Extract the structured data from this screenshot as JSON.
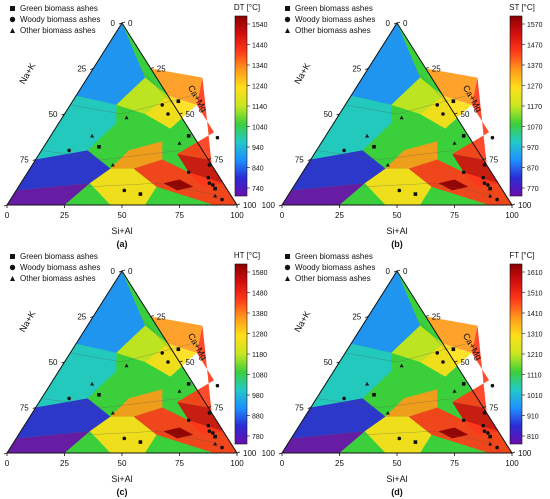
{
  "legend": {
    "green": "Green biomass ashes",
    "woody": "Woody biomass ashes",
    "other": "Other biomass ashes"
  },
  "colorscale": [
    "#6a0dad",
    "#2b2bd6",
    "#1e90ff",
    "#22c9c9",
    "#3ccf3c",
    "#c8e620",
    "#ffe01a",
    "#ff9a1a",
    "#ff3b1a",
    "#d40f0f",
    "#8b0000"
  ],
  "chart_data": [
    {
      "type": "ternary-contour",
      "panel_label": "(a)",
      "colorbar_title": "DT [°C]",
      "colorbar_ticks": [
        "1540",
        "1440",
        "1340",
        "1240",
        "1140",
        "1040",
        "940",
        "840",
        "740"
      ],
      "axis_left": "Na+K",
      "axis_right": "Ca+Mg",
      "axis_bottom": "Si+Al",
      "left_ticks": [
        "0",
        "25",
        "50",
        "75",
        "100"
      ],
      "right_ticks": [
        "100",
        "75",
        "50",
        "25",
        "0"
      ],
      "bottom_ticks": [
        "0",
        "25",
        "50",
        "75",
        "100"
      ],
      "points": [
        {
          "mk": "circle",
          "a": 62,
          "b": 78
        },
        {
          "mk": "circle",
          "a": 45,
          "b": 50
        },
        {
          "mk": "circle",
          "a": 40,
          "b": 55
        },
        {
          "mk": "square",
          "a": 46,
          "b": 57
        },
        {
          "mk": "circle",
          "a": 73,
          "b": 37
        },
        {
          "mk": "circle",
          "a": 77,
          "b": 22
        },
        {
          "mk": "triangle",
          "a": 58,
          "b": 34
        },
        {
          "mk": "square",
          "a": 60,
          "b": 38
        },
        {
          "mk": "circle",
          "a": 82,
          "b": 12
        },
        {
          "mk": "circle",
          "a": 84,
          "b": 11
        },
        {
          "mk": "square",
          "a": 86,
          "b": 9
        },
        {
          "mk": "circle",
          "a": 80,
          "b": 15
        },
        {
          "mk": "triangle",
          "a": 88,
          "b": 5
        },
        {
          "mk": "circle",
          "a": 70,
          "b": 18
        },
        {
          "mk": "triangle",
          "a": 18,
          "b": 38
        },
        {
          "mk": "square",
          "a": 24,
          "b": 32
        },
        {
          "mk": "triangle",
          "a": 35,
          "b": 22
        },
        {
          "mk": "circle",
          "a": 47,
          "b": 8
        },
        {
          "mk": "square",
          "a": 55,
          "b": 6
        },
        {
          "mk": "circle",
          "a": 92,
          "b": 3
        },
        {
          "mk": "triangle",
          "a": 28,
          "b": 48
        },
        {
          "mk": "circle",
          "a": 12,
          "b": 30
        }
      ]
    },
    {
      "type": "ternary-contour",
      "panel_label": "(b)",
      "colorbar_title": "ST [°C]",
      "colorbar_ticks": [
        "1570",
        "1470",
        "1370",
        "1270",
        "1170",
        "1070",
        "970",
        "870",
        "770"
      ],
      "axis_left": "Na+K",
      "axis_right": "Ca+Mg",
      "axis_bottom": "Si+Al",
      "left_ticks": [
        "0",
        "25",
        "50",
        "75",
        "100"
      ],
      "right_ticks": [
        "100",
        "75",
        "50",
        "25",
        "0"
      ],
      "bottom_ticks": [
        "0",
        "25",
        "50",
        "75",
        "100"
      ],
      "points": [
        {
          "mk": "circle",
          "a": 62,
          "b": 78
        },
        {
          "mk": "circle",
          "a": 45,
          "b": 50
        },
        {
          "mk": "circle",
          "a": 40,
          "b": 55
        },
        {
          "mk": "square",
          "a": 46,
          "b": 57
        },
        {
          "mk": "circle",
          "a": 73,
          "b": 37
        },
        {
          "mk": "circle",
          "a": 77,
          "b": 22
        },
        {
          "mk": "triangle",
          "a": 58,
          "b": 34
        },
        {
          "mk": "square",
          "a": 60,
          "b": 38
        },
        {
          "mk": "circle",
          "a": 82,
          "b": 12
        },
        {
          "mk": "circle",
          "a": 84,
          "b": 11
        },
        {
          "mk": "square",
          "a": 86,
          "b": 9
        },
        {
          "mk": "circle",
          "a": 80,
          "b": 15
        },
        {
          "mk": "triangle",
          "a": 88,
          "b": 5
        },
        {
          "mk": "circle",
          "a": 70,
          "b": 18
        },
        {
          "mk": "triangle",
          "a": 18,
          "b": 38
        },
        {
          "mk": "square",
          "a": 24,
          "b": 32
        },
        {
          "mk": "triangle",
          "a": 35,
          "b": 22
        },
        {
          "mk": "circle",
          "a": 47,
          "b": 8
        },
        {
          "mk": "square",
          "a": 55,
          "b": 6
        },
        {
          "mk": "circle",
          "a": 92,
          "b": 3
        },
        {
          "mk": "triangle",
          "a": 28,
          "b": 48
        },
        {
          "mk": "circle",
          "a": 12,
          "b": 30
        }
      ]
    },
    {
      "type": "ternary-contour",
      "panel_label": "(c)",
      "colorbar_title": "HT [°C]",
      "colorbar_ticks": [
        "1580",
        "1480",
        "1380",
        "1280",
        "1180",
        "1080",
        "980",
        "880",
        "780"
      ],
      "axis_left": "Na+K",
      "axis_right": "Ca+Mg",
      "axis_bottom": "Si+Al",
      "left_ticks": [
        "0",
        "25",
        "50",
        "75",
        "100"
      ],
      "right_ticks": [
        "100",
        "75",
        "50",
        "25",
        "0"
      ],
      "bottom_ticks": [
        "0",
        "25",
        "50",
        "75",
        "100"
      ],
      "points": [
        {
          "mk": "circle",
          "a": 62,
          "b": 78
        },
        {
          "mk": "circle",
          "a": 45,
          "b": 50
        },
        {
          "mk": "circle",
          "a": 40,
          "b": 55
        },
        {
          "mk": "square",
          "a": 46,
          "b": 57
        },
        {
          "mk": "circle",
          "a": 73,
          "b": 37
        },
        {
          "mk": "circle",
          "a": 77,
          "b": 22
        },
        {
          "mk": "triangle",
          "a": 58,
          "b": 34
        },
        {
          "mk": "square",
          "a": 60,
          "b": 38
        },
        {
          "mk": "circle",
          "a": 82,
          "b": 12
        },
        {
          "mk": "circle",
          "a": 84,
          "b": 11
        },
        {
          "mk": "square",
          "a": 86,
          "b": 9
        },
        {
          "mk": "circle",
          "a": 80,
          "b": 15
        },
        {
          "mk": "triangle",
          "a": 88,
          "b": 5
        },
        {
          "mk": "circle",
          "a": 70,
          "b": 18
        },
        {
          "mk": "triangle",
          "a": 18,
          "b": 38
        },
        {
          "mk": "square",
          "a": 24,
          "b": 32
        },
        {
          "mk": "triangle",
          "a": 35,
          "b": 22
        },
        {
          "mk": "circle",
          "a": 47,
          "b": 8
        },
        {
          "mk": "square",
          "a": 55,
          "b": 6
        },
        {
          "mk": "circle",
          "a": 92,
          "b": 3
        },
        {
          "mk": "triangle",
          "a": 28,
          "b": 48
        },
        {
          "mk": "circle",
          "a": 12,
          "b": 30
        }
      ]
    },
    {
      "type": "ternary-contour",
      "panel_label": "(d)",
      "colorbar_title": "FT [°C]",
      "colorbar_ticks": [
        "1610",
        "1510",
        "1410",
        "1310",
        "1210",
        "1110",
        "1010",
        "910",
        "810"
      ],
      "axis_left": "Na+K",
      "axis_right": "Ca+Mg",
      "axis_bottom": "Si+Al",
      "left_ticks": [
        "0",
        "25",
        "50",
        "75",
        "100"
      ],
      "right_ticks": [
        "100",
        "75",
        "50",
        "25",
        "0"
      ],
      "bottom_ticks": [
        "0",
        "25",
        "50",
        "75",
        "100"
      ],
      "points": [
        {
          "mk": "circle",
          "a": 62,
          "b": 78
        },
        {
          "mk": "circle",
          "a": 45,
          "b": 50
        },
        {
          "mk": "circle",
          "a": 40,
          "b": 55
        },
        {
          "mk": "square",
          "a": 46,
          "b": 57
        },
        {
          "mk": "circle",
          "a": 73,
          "b": 37
        },
        {
          "mk": "circle",
          "a": 77,
          "b": 22
        },
        {
          "mk": "triangle",
          "a": 58,
          "b": 34
        },
        {
          "mk": "square",
          "a": 60,
          "b": 38
        },
        {
          "mk": "circle",
          "a": 82,
          "b": 12
        },
        {
          "mk": "circle",
          "a": 84,
          "b": 11
        },
        {
          "mk": "square",
          "a": 86,
          "b": 9
        },
        {
          "mk": "circle",
          "a": 80,
          "b": 15
        },
        {
          "mk": "triangle",
          "a": 88,
          "b": 5
        },
        {
          "mk": "circle",
          "a": 70,
          "b": 18
        },
        {
          "mk": "triangle",
          "a": 18,
          "b": 38
        },
        {
          "mk": "square",
          "a": 24,
          "b": 32
        },
        {
          "mk": "triangle",
          "a": 35,
          "b": 22
        },
        {
          "mk": "circle",
          "a": 47,
          "b": 8
        },
        {
          "mk": "square",
          "a": 55,
          "b": 6
        },
        {
          "mk": "circle",
          "a": 92,
          "b": 3
        },
        {
          "mk": "triangle",
          "a": 28,
          "b": 48
        },
        {
          "mk": "circle",
          "a": 12,
          "b": 30
        }
      ]
    }
  ]
}
